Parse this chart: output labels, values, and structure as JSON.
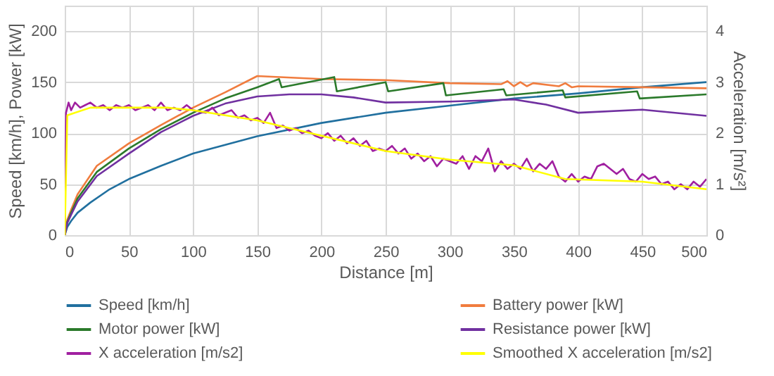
{
  "chart_data": {
    "type": "line",
    "xlabel": "Distance [m]",
    "ylabel": "Speed [km/h], Power [kW]",
    "y2label": "Acceleration [m/s²]",
    "xlim": [
      0,
      500
    ],
    "xticks": [
      0,
      50,
      100,
      150,
      200,
      250,
      300,
      350,
      400,
      450,
      500
    ],
    "ylim": [
      0,
      225
    ],
    "yticks": [
      0,
      50,
      100,
      150,
      200
    ],
    "y2lim": [
      0,
      4.5
    ],
    "y2ticks": [
      0,
      1,
      2,
      3,
      4
    ],
    "grid": true,
    "legend": "bottom",
    "marker": "none",
    "line_style": "solid",
    "series": [
      {
        "name": "Speed [km/h]",
        "color": "#21709f",
        "x": [
          0,
          2,
          5,
          10,
          20,
          35,
          50,
          75,
          100,
          150,
          200,
          250,
          300,
          350,
          400,
          450,
          500
        ],
        "values": [
          0,
          8,
          14,
          22,
          32,
          45,
          55,
          68,
          80,
          97,
          110,
          120,
          127,
          134,
          139,
          145,
          150
        ]
      },
      {
        "name": "Battery power [kW]",
        "color": "#f07c3e",
        "x": [
          0,
          2,
          5,
          10,
          25,
          50,
          75,
          100,
          125,
          150,
          200,
          250,
          300,
          340,
          345,
          350,
          355,
          360,
          365,
          385,
          390,
          395,
          400,
          450,
          500
        ],
        "values": [
          0,
          15,
          25,
          40,
          68,
          90,
          108,
          125,
          140,
          156,
          153,
          152,
          149,
          148,
          151,
          146,
          150,
          146,
          149,
          146,
          149,
          145,
          146,
          145,
          144
        ]
      },
      {
        "name": "Motor power [kW]",
        "color": "#2b7a2b",
        "x": [
          0,
          2,
          5,
          10,
          25,
          50,
          75,
          100,
          125,
          150,
          167,
          169,
          210,
          212,
          250,
          252,
          295,
          297,
          342,
          344,
          388,
          390,
          446,
          448,
          500
        ],
        "values": [
          0,
          13,
          22,
          36,
          62,
          85,
          104,
          120,
          134,
          145,
          153,
          145,
          155,
          141,
          150,
          141,
          149,
          137,
          143,
          137,
          142,
          135,
          141,
          134,
          138
        ]
      },
      {
        "name": "Resistance power [kW]",
        "color": "#7030a0",
        "x": [
          0,
          2,
          5,
          10,
          25,
          50,
          75,
          100,
          125,
          150,
          175,
          200,
          225,
          250,
          300,
          350,
          375,
          400,
          450,
          500
        ],
        "values": [
          0,
          12,
          20,
          33,
          58,
          80,
          101,
          117,
          129,
          136,
          138,
          138,
          135,
          130,
          131,
          133,
          128,
          120,
          123,
          117
        ]
      },
      {
        "name": "X acceleration [m/s2]",
        "color": "#a020a0",
        "axis": "y2",
        "x": [
          0,
          1,
          3,
          5,
          8,
          12,
          16,
          20,
          25,
          30,
          35,
          40,
          45,
          50,
          55,
          60,
          65,
          70,
          75,
          80,
          85,
          90,
          95,
          100,
          110,
          115,
          120,
          130,
          135,
          140,
          145,
          150,
          155,
          160,
          165,
          170,
          175,
          180,
          185,
          190,
          195,
          200,
          205,
          210,
          215,
          220,
          225,
          230,
          235,
          240,
          245,
          250,
          255,
          260,
          265,
          270,
          275,
          280,
          285,
          290,
          295,
          300,
          305,
          310,
          315,
          320,
          325,
          330,
          335,
          340,
          345,
          350,
          355,
          360,
          365,
          370,
          375,
          380,
          385,
          390,
          395,
          400,
          405,
          410,
          415,
          420,
          425,
          430,
          435,
          440,
          445,
          450,
          455,
          460,
          465,
          470,
          475,
          480,
          485,
          490,
          495,
          500
        ],
        "values": [
          0,
          2.4,
          2.6,
          2.45,
          2.6,
          2.5,
          2.55,
          2.6,
          2.5,
          2.55,
          2.45,
          2.55,
          2.5,
          2.55,
          2.45,
          2.5,
          2.55,
          2.45,
          2.6,
          2.45,
          2.5,
          2.45,
          2.55,
          2.45,
          2.4,
          2.5,
          2.35,
          2.45,
          2.3,
          2.35,
          2.25,
          2.3,
          2.2,
          2.4,
          2.1,
          2.15,
          2.05,
          2.1,
          2.0,
          2.05,
          1.95,
          1.9,
          2.0,
          1.85,
          1.95,
          1.8,
          1.9,
          1.75,
          1.85,
          1.65,
          1.7,
          1.65,
          1.75,
          1.6,
          1.7,
          1.5,
          1.6,
          1.45,
          1.55,
          1.35,
          1.5,
          1.45,
          1.4,
          1.55,
          1.3,
          1.55,
          1.45,
          1.7,
          1.25,
          1.45,
          1.3,
          1.4,
          1.3,
          1.5,
          1.25,
          1.4,
          1.3,
          1.45,
          1.15,
          1.05,
          1.2,
          1.05,
          1.15,
          1.1,
          1.35,
          1.4,
          1.3,
          1.2,
          1.3,
          1.1,
          1.05,
          1.2,
          1.1,
          1.15,
          1.0,
          1.05,
          0.9,
          1.0,
          0.9,
          1.05,
          0.95,
          1.1
        ]
      },
      {
        "name": "Smoothed X acceleration [m/s2]",
        "color": "#ffff00",
        "axis": "y2",
        "x": [
          0,
          2,
          20,
          80,
          100,
          150,
          200,
          250,
          300,
          350,
          390,
          450,
          500
        ],
        "values": [
          0,
          2.35,
          2.5,
          2.5,
          2.45,
          2.25,
          1.95,
          1.65,
          1.48,
          1.37,
          1.1,
          1.05,
          0.9
        ]
      }
    ]
  }
}
